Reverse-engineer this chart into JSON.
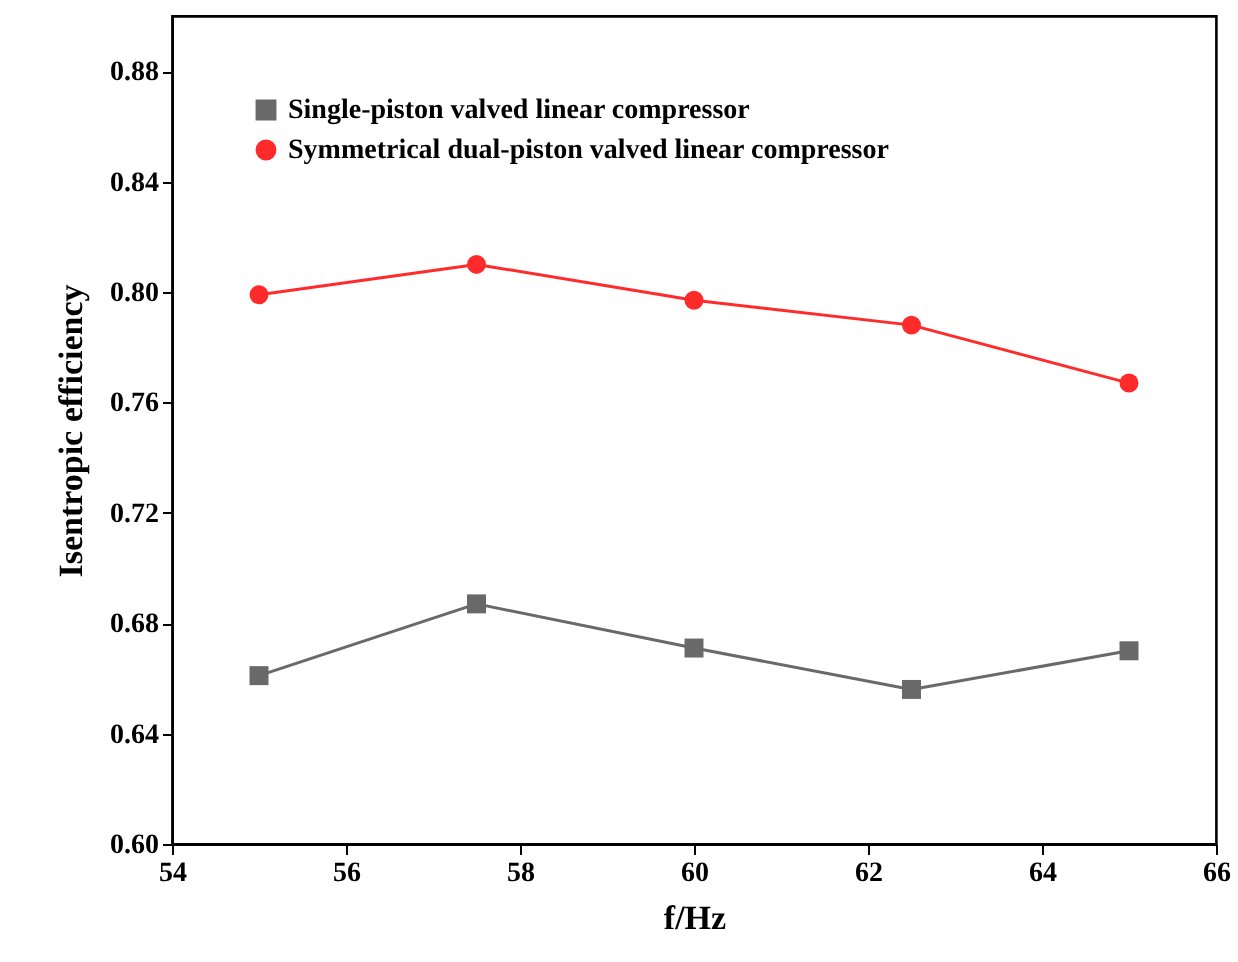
{
  "chart_data": {
    "type": "line",
    "xlabel": "f/Hz",
    "ylabel": "Isentropic efficiency",
    "x": [
      55,
      57.5,
      60,
      62.5,
      65
    ],
    "series": [
      {
        "name": "Single-piston valved linear compressor",
        "color": "#696969",
        "marker": "square",
        "values": [
          0.661,
          0.687,
          0.671,
          0.656,
          0.67
        ]
      },
      {
        "name": "Symmetrical dual-piston valved linear compressor",
        "color": "#ff2a2a",
        "marker": "circle",
        "values": [
          0.799,
          0.81,
          0.797,
          0.788,
          0.767
        ]
      }
    ],
    "xlim": [
      54,
      66
    ],
    "xticks": [
      54,
      56,
      58,
      60,
      62,
      64,
      66
    ],
    "ylim": [
      0.6,
      0.9
    ],
    "yticks": [
      {
        "value": 0.6,
        "label": "0.60"
      },
      {
        "value": 0.64,
        "label": "0.64"
      },
      {
        "value": 0.68,
        "label": "0.68"
      },
      {
        "value": 0.72,
        "label": "0.72"
      },
      {
        "value": 0.76,
        "label": "0.76"
      },
      {
        "value": 0.8,
        "label": "0.80"
      },
      {
        "value": 0.84,
        "label": "0.84"
      },
      {
        "value": 0.88,
        "label": "0.88"
      }
    ],
    "legend": "top left",
    "grid": false,
    "line_style": "solid"
  }
}
